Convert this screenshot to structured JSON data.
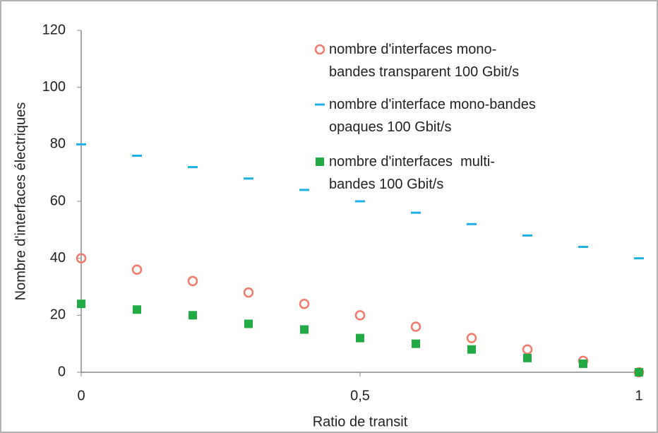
{
  "chart_data": {
    "type": "scatter",
    "x_label": "Ratio de transit",
    "y_label": "Nombre d'interfaces électriques",
    "x": [
      0,
      0.1,
      0.2,
      0.3,
      0.4,
      0.5,
      0.6,
      0.7,
      0.8,
      0.9,
      1
    ],
    "series": [
      {
        "name": "nombre d'interfaces mono-\nbandes transparent 100 Gbit/s",
        "marker": "circle",
        "color": "#f07a6a",
        "values": [
          40,
          36,
          32,
          28,
          24,
          20,
          16,
          12,
          8,
          4,
          0
        ]
      },
      {
        "name": "nombre d'interface mono-bandes\nopaques 100 Gbit/s",
        "marker": "dash",
        "color": "#1fb0e8",
        "values": [
          80,
          76,
          72,
          68,
          64,
          60,
          56,
          52,
          48,
          44,
          40
        ]
      },
      {
        "name": "nombre d'interfaces  multi-\nbandes 100 Gbit/s",
        "marker": "square",
        "color": "#22aa44",
        "values": [
          24,
          22,
          20,
          17,
          15,
          12,
          10,
          8,
          5,
          3,
          0
        ]
      }
    ],
    "xlim": [
      0,
      1
    ],
    "xticks": [
      0,
      {
        "value": 0.5,
        "label": "0,5"
      },
      1
    ],
    "ylim": [
      0,
      120
    ],
    "yticks": [
      0,
      20,
      40,
      60,
      80,
      100,
      120
    ]
  }
}
